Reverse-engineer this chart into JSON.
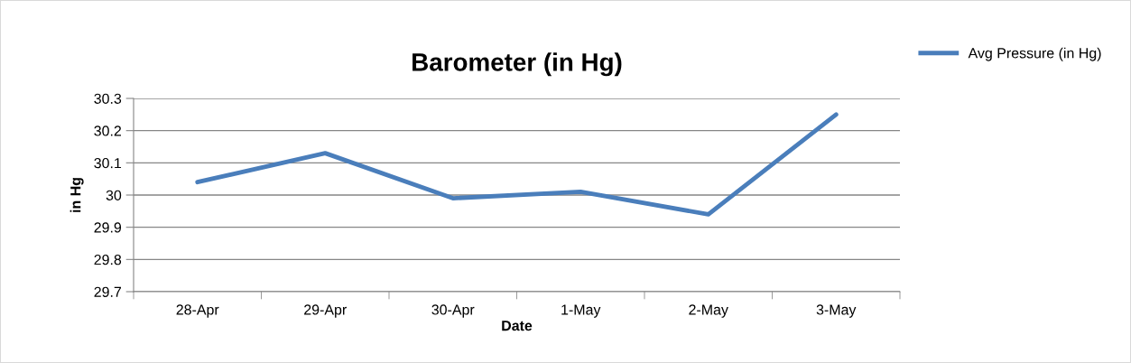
{
  "chart_data": {
    "type": "line",
    "title": "Barometer (in Hg)",
    "xlabel": "Date",
    "ylabel": "in Hg",
    "categories": [
      "28-Apr",
      "29-Apr",
      "30-Apr",
      "1-May",
      "2-May",
      "3-May"
    ],
    "series": [
      {
        "name": "Avg Pressure (in Hg)",
        "color": "#4a7ebb",
        "values": [
          30.04,
          30.13,
          29.99,
          30.01,
          29.94,
          30.25
        ]
      }
    ],
    "ylim": [
      29.7,
      30.3
    ],
    "yticks": [
      29.7,
      29.8,
      29.9,
      30,
      30.1,
      30.2,
      30.3
    ],
    "grid": "y",
    "legend": "top right",
    "marker": "none",
    "line_style": "solid"
  }
}
